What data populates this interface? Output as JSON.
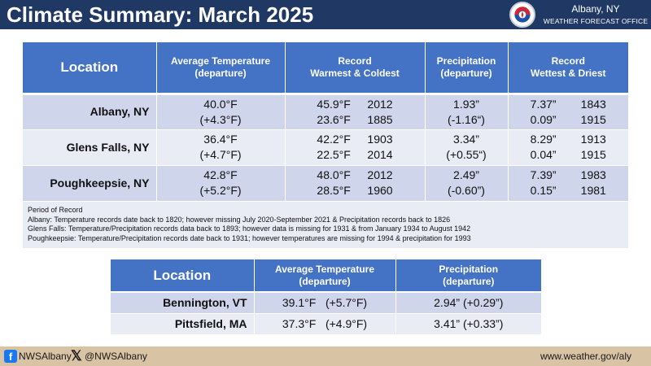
{
  "header": {
    "title": "Climate Summary: March 2025",
    "office_city": "Albany, NY",
    "office_name": "WEATHER FORECAST OFFICE",
    "logo_icon": "nws-logo-icon"
  },
  "table1": {
    "headers": [
      "Location",
      "Average Temperature\n(departure)",
      "Record\nWarmest & Coldest",
      "Precipitation\n(departure)",
      "Record\nWettest & Driest"
    ],
    "rows": [
      {
        "location": "Albany, NY",
        "avg_temp": "40.0°F",
        "temp_departure": "(+4.3°F)",
        "warmest_value": "45.9°F",
        "warmest_year": "2012",
        "coldest_value": "23.6°F",
        "coldest_year": "1885",
        "precip": "1.93”",
        "precip_departure": "(-1.16“)",
        "wettest_value": "7.37”",
        "wettest_year": "1843",
        "driest_value": "0.09”",
        "driest_year": "1915"
      },
      {
        "location": "Glens Falls, NY",
        "avg_temp": "36.4°F",
        "temp_departure": "(+4.7°F)",
        "warmest_value": "42.2°F",
        "warmest_year": "1903",
        "coldest_value": "22.5°F",
        "coldest_year": "2014",
        "precip": "3.34”",
        "precip_departure": "(+0.55“)",
        "wettest_value": "8.29”",
        "wettest_year": "1913",
        "driest_value": "0.04”",
        "driest_year": "1915"
      },
      {
        "location": "Poughkeepsie, NY",
        "avg_temp": "42.8°F",
        "temp_departure": "(+5.2°F)",
        "warmest_value": "48.0°F",
        "warmest_year": "2012",
        "coldest_value": "28.5°F",
        "coldest_year": "1960",
        "precip": "2.49”",
        "precip_departure": "(-0.60”)",
        "wettest_value": "7.39”",
        "wettest_year": "1983",
        "driest_value": "0.15”",
        "driest_year": "1981"
      }
    ],
    "notes": [
      "Period of Record",
      "Albany: Temperature records date back to 1820; however missing July 2020-September 2021 & Precipitation records back to 1826",
      "Glens Falls: Temperature/Precipitation records data back to 1893; however data is missing for 1931 & from January 1934 to August 1942",
      "Poughkeepsie: Temperature/Precipitation records date back to 1931; however temperatures are missing for 1994 & precipitation for 1993"
    ]
  },
  "table2": {
    "headers": [
      "Location",
      "Average Temperature\n(departure)",
      "Precipitation\n(departure)"
    ],
    "rows": [
      {
        "location": "Bennington, VT",
        "avg_temp": "39.1°F",
        "temp_departure": "(+5.7°F)",
        "precip": "2.94” (+0.29”)"
      },
      {
        "location": "Pittsfield, MA",
        "avg_temp": "37.3°F",
        "temp_departure": "(+4.9°F)",
        "precip": "3.41” (+0.33”)"
      }
    ]
  },
  "footer": {
    "facebook_icon": "facebook-icon",
    "facebook_handle": "NWSAlbany",
    "x_icon": "x-icon",
    "x_handle": "@NWSAlbany",
    "website": "www.weather.gov/aly"
  },
  "colors": {
    "header_bg": "#1f3864",
    "table_header_bg": "#4472c4",
    "row_dark": "#cfd5ea",
    "row_light": "#e9ebf5",
    "footer_bg": "#d8c3a5"
  }
}
